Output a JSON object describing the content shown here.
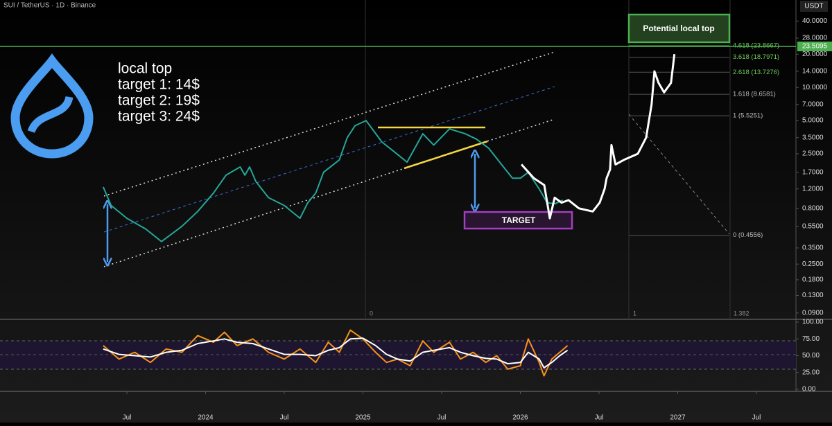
{
  "chart_data": {
    "type": "line",
    "title": "SUI / TetherUS · 1D · Binance",
    "y_unit": "USDT",
    "log_scale": true,
    "xlim": [
      2022.694,
      2027.751
    ],
    "xticks": [
      {
        "value": 2023.5,
        "label": "Jul"
      },
      {
        "value": 2024,
        "label": "2024"
      },
      {
        "value": 2024.5,
        "label": "Jul"
      },
      {
        "value": 2025,
        "label": "2025"
      },
      {
        "value": 2025.5,
        "label": "Jul"
      },
      {
        "value": 2026,
        "label": "2026"
      },
      {
        "value": 2026.5,
        "label": "Jul"
      },
      {
        "value": 2027,
        "label": "2027"
      },
      {
        "value": 2027.5,
        "label": "Jul"
      }
    ],
    "ylim": [
      0.08,
      62
    ],
    "yticks": [
      {
        "value": 40,
        "label": "40.0000"
      },
      {
        "value": 28,
        "label": "28.0000"
      },
      {
        "value": 20,
        "label": "20.0000"
      },
      {
        "value": 14,
        "label": "14.0000"
      },
      {
        "value": 10,
        "label": "10.0000"
      },
      {
        "value": 7,
        "label": "7.0000"
      },
      {
        "value": 5,
        "label": "5.0000"
      },
      {
        "value": 3.5,
        "label": "3.5000"
      },
      {
        "value": 2.5,
        "label": "2.5000"
      },
      {
        "value": 1.7,
        "label": "1.7000"
      },
      {
        "value": 1.2,
        "label": "1.2000"
      },
      {
        "value": 0.8,
        "label": "0.8000"
      },
      {
        "value": 0.55,
        "label": "0.5500"
      },
      {
        "value": 0.35,
        "label": "0.3500"
      },
      {
        "value": 0.25,
        "label": "0.2500"
      },
      {
        "value": 0.18,
        "label": "0.1800"
      },
      {
        "value": 0.13,
        "label": "0.1300"
      },
      {
        "value": 0.09,
        "label": "0.0900"
      }
    ],
    "hline": 23.5095,
    "series": [
      {
        "name": "SUI price",
        "color": "#26a69a",
        "x": [
          2023.35,
          2023.4,
          2023.5,
          2023.62,
          2023.72,
          2023.85,
          2023.95,
          2024.05,
          2024.13,
          2024.22,
          2024.25,
          2024.28,
          2024.32,
          2024.4,
          2024.5,
          2024.6,
          2024.65,
          2024.7,
          2024.75,
          2024.85,
          2024.9,
          2024.95,
          2025.02,
          2025.07,
          2025.12,
          2025.2,
          2025.28,
          2025.38,
          2025.45,
          2025.55,
          2025.65,
          2025.72,
          2025.8,
          2025.88,
          2025.95,
          2026,
          2026.05,
          2026.12,
          2026.17,
          2026.22,
          2026.27
        ],
        "values": [
          1.25,
          0.85,
          0.65,
          0.52,
          0.4,
          0.55,
          0.75,
          1.1,
          1.6,
          1.9,
          1.6,
          1.9,
          1.4,
          1,
          0.85,
          0.65,
          0.9,
          1.1,
          1.7,
          2.2,
          3.5,
          4.5,
          5,
          4,
          3.2,
          2.6,
          2.1,
          3.8,
          3,
          4.2,
          3.8,
          3.4,
          2.8,
          2,
          1.5,
          1.5,
          1.7,
          1.2,
          0.9,
          0.88,
          0.95
        ]
      },
      {
        "name": "Projection",
        "color": "#ffffff",
        "x": [
          2026.007,
          2026.086,
          2026.152,
          2026.187,
          2026.218,
          2026.262,
          2026.306,
          2026.372,
          2026.46,
          2026.504,
          2026.535,
          2026.548,
          2026.57,
          2026.579,
          2026.605,
          2026.658,
          2026.746,
          2026.799,
          2026.834,
          2026.852,
          2026.878,
          2026.913,
          2026.957,
          2026.979
        ],
        "values": [
          2,
          1.5,
          1.3,
          0.65,
          1,
          0.9,
          0.95,
          0.8,
          0.75,
          0.9,
          1.2,
          1.5,
          1.8,
          3,
          2,
          2.2,
          2.5,
          3.5,
          7,
          14,
          11,
          9,
          11,
          20
        ]
      }
    ],
    "fib_levels": [
      {
        "value": 23.8667,
        "label": "4.618 (23.8667)"
      },
      {
        "value": 18.7971,
        "label": "3.618 (18.7971)"
      },
      {
        "value": 13.7276,
        "label": "2.618 (13.7276)"
      },
      {
        "value": 8.6581,
        "label": "1.618 (8.6581)"
      },
      {
        "value": 5.5251,
        "label": "1 (5.5251)"
      },
      {
        "value": 0.4556,
        "label": "0 (0.4556)"
      }
    ],
    "fib_time_labels": [
      "0",
      "1",
      "1.382"
    ],
    "annotations": {
      "notes": [
        "local top",
        "target 1: 14$",
        "target 2: 19$",
        "target 3: 24$"
      ],
      "top_box": "Potential local top",
      "target_box": "TARGET"
    },
    "rsi": {
      "type": "line",
      "ylim": [
        0,
        100
      ],
      "yticks": [
        {
          "value": 100,
          "label": "100.00"
        },
        {
          "value": 75,
          "label": "75.00"
        },
        {
          "value": 50,
          "label": "50.00"
        },
        {
          "value": 25,
          "label": "25.00"
        },
        {
          "value": 0,
          "label": "0.00"
        }
      ],
      "x": [
        2023.35,
        2023.45,
        2023.55,
        2023.65,
        2023.75,
        2023.85,
        2023.95,
        2024.05,
        2024.12,
        2024.2,
        2024.3,
        2024.4,
        2024.5,
        2024.6,
        2024.7,
        2024.78,
        2024.85,
        2024.92,
        2025,
        2025.08,
        2025.15,
        2025.22,
        2025.3,
        2025.38,
        2025.45,
        2025.55,
        2025.62,
        2025.7,
        2025.78,
        2025.85,
        2025.92,
        2026,
        2026.05,
        2026.12,
        2026.15,
        2026.2,
        2026.25,
        2026.3
      ],
      "series": [
        {
          "name": "RSI",
          "color": "#f7931a",
          "values": [
            65,
            45,
            55,
            40,
            60,
            55,
            80,
            70,
            85,
            65,
            75,
            55,
            45,
            60,
            40,
            70,
            55,
            88,
            75,
            55,
            40,
            45,
            35,
            72,
            55,
            70,
            45,
            55,
            40,
            50,
            30,
            35,
            75,
            40,
            20,
            45,
            55,
            65
          ]
        },
        {
          "name": "RSI MA",
          "color": "#ffffff",
          "values": [
            60,
            52,
            50,
            48,
            55,
            58,
            68,
            72,
            75,
            70,
            68,
            60,
            52,
            52,
            50,
            58,
            62,
            75,
            76,
            65,
            52,
            45,
            42,
            55,
            58,
            62,
            55,
            50,
            46,
            45,
            38,
            40,
            55,
            45,
            32,
            40,
            50,
            58
          ]
        }
      ]
    }
  }
}
